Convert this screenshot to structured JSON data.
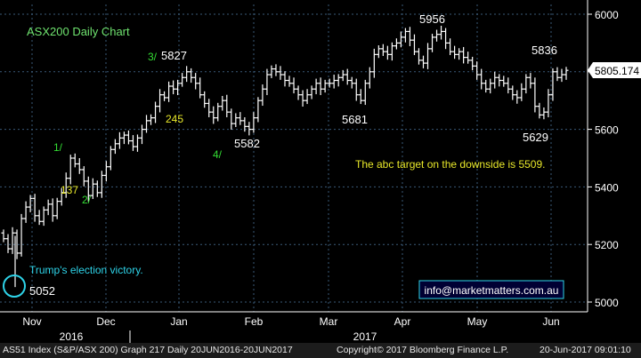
{
  "chart_data": {
    "type": "bar",
    "subtype": "ohlc-daily",
    "title": "ASX200 Daily Chart",
    "ylim": [
      4960,
      6060
    ],
    "y_ticks": [
      5000,
      5200,
      5400,
      5600,
      5800,
      6000
    ],
    "y_tick_labels": [
      "5000",
      "5200",
      "5400",
      "5600",
      "5800",
      "6000"
    ],
    "last_price": "5805.174",
    "month_labels": [
      "Nov",
      "Dec",
      "Jan",
      "Feb",
      "Mar",
      "Apr",
      "May",
      "Jun"
    ],
    "year_labels": [
      "2016",
      "2017"
    ],
    "grid": true,
    "colors": {
      "background": "#000000",
      "bars": "#ffffff",
      "grid": "#3a5a78",
      "axis": "#ffffff",
      "title": "#6fe36f",
      "wave_green": "#33dd33",
      "wave_yellow": "#e8e82a",
      "annotation_cyan": "#2ed3e8",
      "target_text": "#e8e82a"
    },
    "closes": [
      5220,
      5185,
      5240,
      5170,
      5290,
      5330,
      5360,
      5300,
      5280,
      5320,
      5340,
      5300,
      5350,
      5380,
      5430,
      5500,
      5480,
      5460,
      5420,
      5370,
      5410,
      5380,
      5440,
      5470,
      5530,
      5550,
      5570,
      5580,
      5560,
      5540,
      5570,
      5600,
      5630,
      5640,
      5680,
      5720,
      5710,
      5750,
      5740,
      5760,
      5780,
      5800,
      5780,
      5760,
      5720,
      5690,
      5660,
      5640,
      5680,
      5700,
      5660,
      5620,
      5640,
      5630,
      5610,
      5600,
      5640,
      5700,
      5740,
      5790,
      5810,
      5800,
      5790,
      5770,
      5760,
      5740,
      5720,
      5700,
      5720,
      5740,
      5760,
      5740,
      5760,
      5760,
      5770,
      5780,
      5790,
      5770,
      5760,
      5720,
      5700,
      5760,
      5800,
      5860,
      5880,
      5870,
      5860,
      5890,
      5900,
      5920,
      5940,
      5910,
      5870,
      5840,
      5830,
      5880,
      5920,
      5930,
      5940,
      5900,
      5870,
      5860,
      5870,
      5850,
      5840,
      5820,
      5790,
      5760,
      5740,
      5760,
      5780,
      5770,
      5760,
      5740,
      5720,
      5710,
      5740,
      5780,
      5760,
      5680,
      5650,
      5660,
      5720,
      5800,
      5780,
      5790,
      5805
    ],
    "annotations": [
      {
        "text": "3/",
        "color": "wave_green"
      },
      {
        "text": "5827",
        "color": "white"
      },
      {
        "text": "5956",
        "color": "white"
      },
      {
        "text": "5836",
        "color": "white"
      },
      {
        "text": "1/",
        "color": "wave_green"
      },
      {
        "text": "137",
        "color": "wave_yellow"
      },
      {
        "text": "2/",
        "color": "wave_green"
      },
      {
        "text": "245",
        "color": "wave_yellow"
      },
      {
        "text": "4/",
        "color": "wave_green"
      },
      {
        "text": "5582",
        "color": "white"
      },
      {
        "text": "5681",
        "color": "white"
      },
      {
        "text": "5629",
        "color": "white"
      },
      {
        "text": "5052",
        "color": "white"
      },
      {
        "text": "Trump's election victory.",
        "color": "annotation_cyan"
      },
      {
        "text": "The abc target on the downside is 5509.",
        "color": "target_text"
      }
    ],
    "watermark": "info@marketmatters.com.au"
  },
  "footer": {
    "index": "AS51 Index (S&P/ASX 200) Graph 217  Daily 20JUN2016-20JUN2017",
    "copyright": "Copyright© 2017 Bloomberg Finance L.P.",
    "timestamp": "20-Jun-2017 09:01:10"
  }
}
